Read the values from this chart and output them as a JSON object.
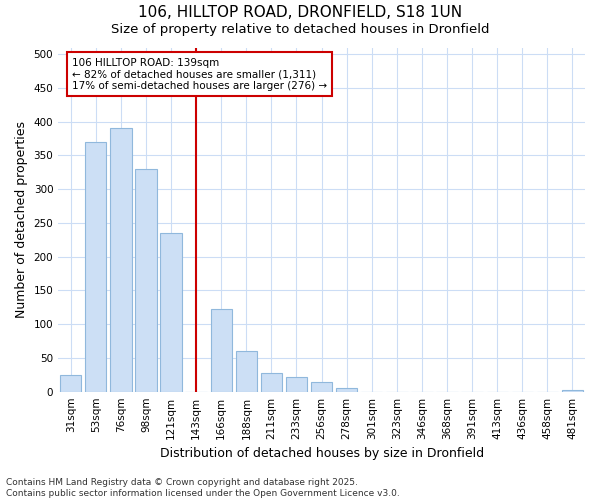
{
  "title1": "106, HILLTOP ROAD, DRONFIELD, S18 1UN",
  "title2": "Size of property relative to detached houses in Dronfield",
  "xlabel": "Distribution of detached houses by size in Dronfield",
  "ylabel": "Number of detached properties",
  "categories": [
    "31sqm",
    "53sqm",
    "76sqm",
    "98sqm",
    "121sqm",
    "143sqm",
    "166sqm",
    "188sqm",
    "211sqm",
    "233sqm",
    "256sqm",
    "278sqm",
    "301sqm",
    "323sqm",
    "346sqm",
    "368sqm",
    "391sqm",
    "413sqm",
    "436sqm",
    "458sqm",
    "481sqm"
  ],
  "values": [
    25,
    370,
    390,
    330,
    235,
    0,
    122,
    60,
    27,
    22,
    15,
    5,
    0,
    0,
    0,
    0,
    0,
    0,
    0,
    0,
    2
  ],
  "bar_color": "#ccdff5",
  "bar_edge_color": "#90b8dc",
  "vline_color": "#cc0000",
  "vline_pos": 5,
  "annotation_text": "106 HILLTOP ROAD: 139sqm\n← 82% of detached houses are smaller (1,311)\n17% of semi-detached houses are larger (276) →",
  "ylim": [
    0,
    510
  ],
  "yticks": [
    0,
    50,
    100,
    150,
    200,
    250,
    300,
    350,
    400,
    450,
    500
  ],
  "footnote": "Contains HM Land Registry data © Crown copyright and database right 2025.\nContains public sector information licensed under the Open Government Licence v3.0.",
  "fig_bg_color": "#ffffff",
  "plot_bg_color": "#ffffff",
  "grid_color": "#ccddf5",
  "title_fontsize": 11,
  "subtitle_fontsize": 9.5,
  "axis_label_fontsize": 9,
  "tick_fontsize": 7.5,
  "footnote_fontsize": 6.5
}
